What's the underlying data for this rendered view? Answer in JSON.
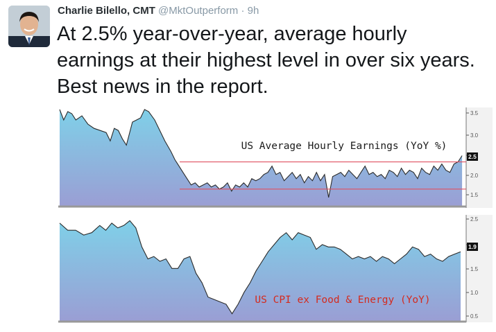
{
  "tweet": {
    "author_name": "Charlie Bilello, CMT",
    "handle": "@MktOutperform",
    "separator": "·",
    "time": "9h",
    "text": "At 2.5% year-over-year, average hourly earnings at their highest level in over six years. Best news in the report."
  },
  "chart_data": [
    {
      "type": "area",
      "title": "US Average Hourly Earnings (YoY %)",
      "ylim": [
        1.3,
        3.6
      ],
      "yticks": [
        "3.5",
        "3.0",
        "2.5",
        "2.0",
        "1.5"
      ],
      "last_value_label": "2.5",
      "reference_lines": [
        2.35,
        1.7
      ],
      "colors": {
        "title": "#1a1a1a",
        "reference_line": "#e05060",
        "fill_top": "#7fd0e8",
        "fill_bottom": "#9a9ed4",
        "line": "#2a2a2a"
      },
      "x": [
        0,
        0.01,
        0.02,
        0.03,
        0.04,
        0.055,
        0.07,
        0.085,
        0.1,
        0.115,
        0.125,
        0.135,
        0.145,
        0.155,
        0.165,
        0.18,
        0.19,
        0.2,
        0.21,
        0.22,
        0.235,
        0.25,
        0.26,
        0.275,
        0.285,
        0.295,
        0.305,
        0.315,
        0.325,
        0.335,
        0.345,
        0.355,
        0.365,
        0.375,
        0.385,
        0.395,
        0.405,
        0.415,
        0.425,
        0.435,
        0.445,
        0.455,
        0.465,
        0.475,
        0.485,
        0.495,
        0.505,
        0.515,
        0.525,
        0.535,
        0.545,
        0.555,
        0.565,
        0.575,
        0.585,
        0.595,
        0.605,
        0.615,
        0.625,
        0.635,
        0.645,
        0.655,
        0.665,
        0.675,
        0.685,
        0.695,
        0.705,
        0.715,
        0.725,
        0.735,
        0.745,
        0.755,
        0.765,
        0.775,
        0.785,
        0.795,
        0.805,
        0.815,
        0.825,
        0.835,
        0.845,
        0.855,
        0.865,
        0.875,
        0.885,
        0.895,
        0.905,
        0.915,
        0.925,
        0.935,
        0.945,
        0.955,
        0.965,
        0.975,
        0.985,
        0.995
      ],
      "values": [
        3.6,
        3.35,
        3.55,
        3.5,
        3.35,
        3.45,
        3.25,
        3.15,
        3.1,
        3.05,
        2.85,
        3.15,
        3.1,
        2.9,
        2.75,
        3.3,
        3.35,
        3.4,
        3.6,
        3.55,
        3.35,
        3.05,
        2.85,
        2.6,
        2.4,
        2.25,
        2.1,
        1.95,
        1.8,
        1.85,
        1.75,
        1.8,
        1.85,
        1.75,
        1.8,
        1.7,
        1.75,
        1.85,
        1.65,
        1.8,
        1.75,
        1.85,
        1.75,
        1.95,
        1.9,
        1.95,
        2.05,
        2.1,
        2.25,
        2.05,
        2.1,
        1.9,
        2.0,
        2.1,
        1.95,
        2.05,
        1.85,
        2.0,
        1.9,
        2.1,
        1.9,
        2.05,
        1.5,
        2.0,
        2.05,
        2.1,
        2.0,
        2.15,
        2.05,
        1.95,
        2.1,
        2.25,
        2.05,
        2.1,
        2.0,
        2.05,
        1.95,
        2.15,
        2.1,
        2.0,
        2.2,
        2.05,
        2.15,
        2.1,
        1.95,
        2.2,
        2.1,
        2.05,
        2.25,
        2.15,
        2.3,
        2.15,
        2.1,
        2.3,
        2.35,
        2.5
      ]
    },
    {
      "type": "area",
      "title": "US CPI ex Food & Energy (YoY)",
      "ylim": [
        0.45,
        2.6
      ],
      "yticks": [
        "2.5",
        "2.0",
        "1.5",
        "1.0",
        "0.5"
      ],
      "last_value_label": "1.9",
      "colors": {
        "title": "#d42a1e",
        "fill_top": "#7fd0e8",
        "fill_bottom": "#9a9ed4",
        "line": "#2a2a2a"
      },
      "x": [
        0,
        0.02,
        0.04,
        0.06,
        0.08,
        0.1,
        0.115,
        0.13,
        0.145,
        0.16,
        0.175,
        0.19,
        0.205,
        0.22,
        0.235,
        0.25,
        0.265,
        0.28,
        0.295,
        0.31,
        0.325,
        0.34,
        0.355,
        0.37,
        0.385,
        0.4,
        0.415,
        0.43,
        0.445,
        0.46,
        0.475,
        0.49,
        0.505,
        0.52,
        0.535,
        0.55,
        0.565,
        0.58,
        0.595,
        0.61,
        0.625,
        0.64,
        0.655,
        0.67,
        0.685,
        0.7,
        0.715,
        0.73,
        0.745,
        0.76,
        0.775,
        0.79,
        0.805,
        0.82,
        0.835,
        0.85,
        0.865,
        0.88,
        0.895,
        0.91,
        0.925,
        0.94,
        0.955,
        0.97,
        0.985,
        1.0
      ],
      "values": [
        2.5,
        2.35,
        2.35,
        2.25,
        2.3,
        2.45,
        2.35,
        2.5,
        2.4,
        2.45,
        2.55,
        2.4,
        2.0,
        1.75,
        1.8,
        1.7,
        1.75,
        1.55,
        1.55,
        1.75,
        1.8,
        1.45,
        1.25,
        0.95,
        0.9,
        0.85,
        0.8,
        0.6,
        0.8,
        1.05,
        1.25,
        1.5,
        1.7,
        1.9,
        2.05,
        2.2,
        2.3,
        2.15,
        2.3,
        2.25,
        2.2,
        1.95,
        2.05,
        2.0,
        2.0,
        1.95,
        1.85,
        1.75,
        1.8,
        1.75,
        1.8,
        1.7,
        1.8,
        1.75,
        1.65,
        1.75,
        1.85,
        2.0,
        1.95,
        1.8,
        1.85,
        1.75,
        1.7,
        1.8,
        1.85,
        1.9
      ]
    }
  ]
}
